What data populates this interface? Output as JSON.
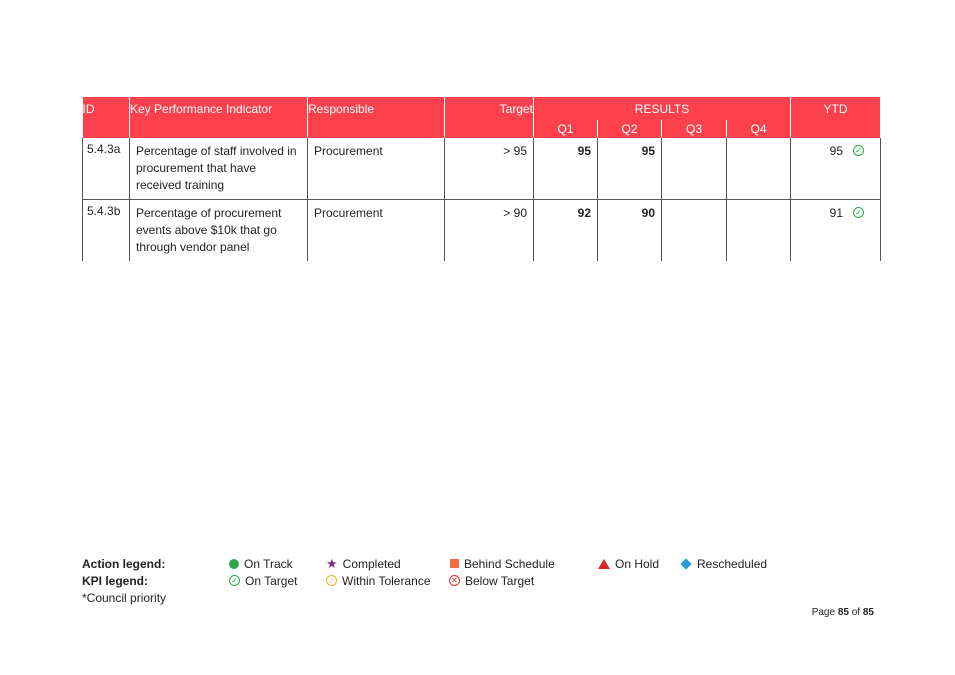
{
  "table": {
    "headers": {
      "id": "ID",
      "kpi": "Key Performance Indicator",
      "responsible": "Responsible",
      "target": "Target",
      "results": "RESULTS",
      "ytd": "YTD",
      "q1": "Q1",
      "q2": "Q2",
      "q3": "Q3",
      "q4": "Q4"
    },
    "rows": [
      {
        "id": "5.4.3a",
        "kpi": "Percentage of staff involved in procurement that have received training",
        "responsible": "Procurement",
        "target": "> 95",
        "q1": "95",
        "q2": "95",
        "q3": "",
        "q4": "",
        "ytd": "95",
        "ytd_status": "on-target"
      },
      {
        "id": "5.4.3b",
        "kpi": "Percentage of procurement events above $10k that go through vendor panel",
        "responsible": "Procurement",
        "target": "> 90",
        "q1": "92",
        "q2": "90",
        "q3": "",
        "q4": "",
        "ytd": "91",
        "ytd_status": "on-target"
      }
    ],
    "header_color": "#fc414d"
  },
  "legend": {
    "action_label": "Action legend:",
    "kpi_label": "KPI legend:",
    "priority_note": "*Council priority",
    "actions": [
      "On Track",
      "Completed",
      "Behind Schedule",
      "On Hold",
      "Rescheduled"
    ],
    "kpis": [
      "On Target",
      "Within Tolerance",
      "Below Target"
    ],
    "colors": {
      "on_track": "#2ea84a",
      "completed": "#7c2b7e",
      "behind_schedule": "#f26b43",
      "on_hold": "#d82626",
      "rescheduled": "#2b9ad8",
      "on_target": "#2aa84a",
      "within_tolerance": "#e8b820",
      "below_target": "#e03030"
    }
  },
  "footer": {
    "page_prefix": "Page",
    "page_current": "85",
    "page_of": "of",
    "page_total": "85"
  }
}
